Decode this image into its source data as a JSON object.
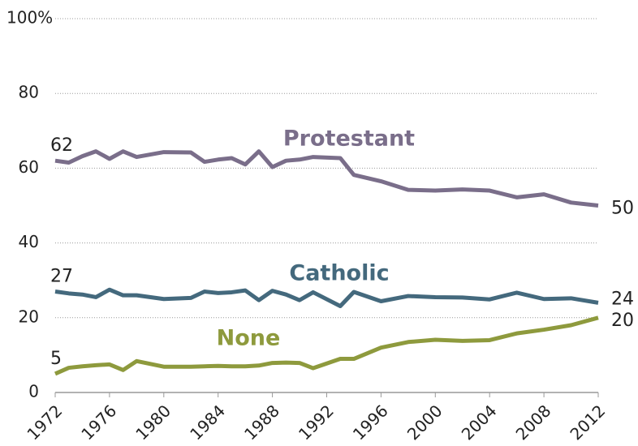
{
  "chart_data": {
    "type": "line",
    "x": [
      1972,
      1973,
      1974,
      1975,
      1976,
      1977,
      1978,
      1980,
      1982,
      1983,
      1984,
      1985,
      1986,
      1987,
      1988,
      1989,
      1990,
      1991,
      1993,
      1994,
      1996,
      1998,
      2000,
      2002,
      2004,
      2006,
      2008,
      2010,
      2012
    ],
    "series": [
      {
        "name": "Protestant",
        "color": "#7a6e8a",
        "values": [
          62,
          61.5,
          63.2,
          64.5,
          62.5,
          64.5,
          63,
          64.3,
          64.2,
          61.7,
          62.3,
          62.7,
          61,
          64.5,
          60.3,
          62,
          62.3,
          63,
          62.7,
          58.2,
          56.5,
          54.2,
          54,
          54.3,
          54,
          52.2,
          53,
          50.8,
          50
        ]
      },
      {
        "name": "Catholic",
        "color": "#44697d",
        "values": [
          27,
          26.5,
          26.2,
          25.5,
          27.5,
          26,
          26,
          25,
          25.3,
          27,
          26.6,
          26.8,
          27.3,
          24.7,
          27.2,
          26.2,
          24.7,
          26.8,
          23.1,
          26.9,
          24.4,
          25.8,
          25.5,
          25.4,
          24.9,
          26.7,
          25,
          25.2,
          24
        ]
      },
      {
        "name": "None",
        "color": "#8e9a3d",
        "values": [
          5,
          6.6,
          7,
          7.3,
          7.5,
          6,
          8.4,
          6.9,
          6.9,
          7,
          7.1,
          7,
          7,
          7.2,
          7.9,
          8,
          7.9,
          6.5,
          9,
          9,
          12,
          13.5,
          14.1,
          13.8,
          14,
          15.8,
          16.8,
          18,
          20
        ]
      }
    ],
    "xlim": [
      1972,
      2012
    ],
    "xticks": [
      1972,
      1976,
      1980,
      1984,
      1988,
      1992,
      1996,
      2000,
      2004,
      2008,
      2012
    ],
    "ylim": [
      0,
      100
    ],
    "yticks": [
      0,
      20,
      40,
      60,
      80,
      {
        "value": 100,
        "label": "100%"
      }
    ],
    "grid": true
  }
}
